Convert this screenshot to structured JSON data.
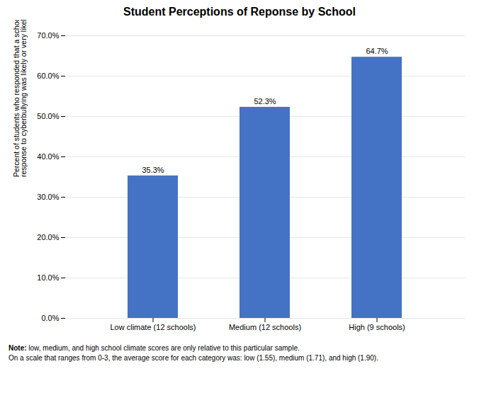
{
  "chart_data": {
    "type": "bar",
    "title": "Student Perceptions of Reponse by School",
    "categories": [
      "Low climate (12 schools)",
      "Medium (12 schools)",
      "High (9 schools)"
    ],
    "values": [
      0.353,
      0.523,
      0.647
    ],
    "value_labels": [
      "35.3%",
      "52.3%",
      "64.7%"
    ],
    "data_labels": true,
    "color": "#4472C4",
    "ylabel": "Percent of students who responded that a school\nresponse to cyberbullying was likely or very likely",
    "ylim": [
      0,
      0.7
    ],
    "yticks": [
      {
        "value": 0.0,
        "label": "0.0%"
      },
      {
        "value": 0.1,
        "label": "10.0%"
      },
      {
        "value": 0.2,
        "label": "20.0%"
      },
      {
        "value": 0.3,
        "label": "30.0%"
      },
      {
        "value": 0.4,
        "label": "40.0%"
      },
      {
        "value": 0.5,
        "label": "50.0%"
      },
      {
        "value": 0.6,
        "label": "60.0%"
      },
      {
        "value": 0.7,
        "label": "70.0%"
      }
    ],
    "grid": true,
    "annotations": [
      {
        "bold": "Note:",
        "text": " low, medium, and high school climate scores are only relative to this particular sample."
      },
      {
        "text": "On a scale that ranges from 0-3, the average score for each category was: low (1.55), medium (1.71), and high (1.90)."
      }
    ]
  }
}
